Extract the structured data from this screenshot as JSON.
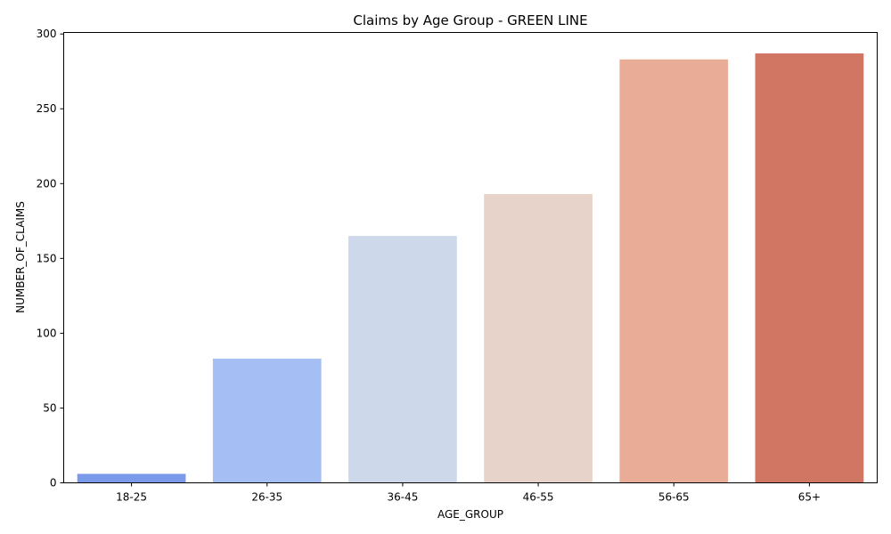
{
  "chart_data": {
    "type": "bar",
    "title": "Claims by Age Group - GREEN LINE",
    "xlabel": "AGE_GROUP",
    "ylabel": "NUMBER_OF_CLAIMS",
    "categories": [
      "18-25",
      "26-35",
      "36-45",
      "46-55",
      "56-65",
      "65+"
    ],
    "values": [
      6,
      83,
      165,
      193,
      283,
      287
    ],
    "colors": [
      "#7b9ae9",
      "#a5bff5",
      "#cdd9ea",
      "#e7d3c9",
      "#e9ad97",
      "#d07663"
    ],
    "ylim": [
      0,
      301
    ],
    "yticks": [
      0,
      50,
      100,
      150,
      200,
      250,
      300
    ],
    "grid": false,
    "legend": "none"
  }
}
